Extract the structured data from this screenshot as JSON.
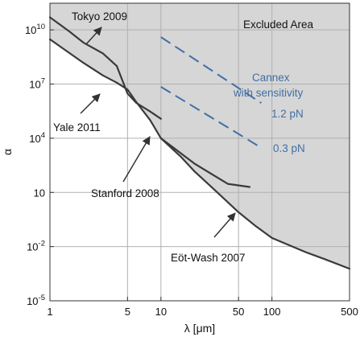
{
  "chart_data": {
    "type": "area",
    "xlabel": "λ [μm]",
    "ylabel": "α",
    "x_scale": "log",
    "y_scale": "log",
    "xlim": [
      1,
      500
    ],
    "ylim": [
      1e-05,
      300000000000
    ],
    "grid": true,
    "x_ticks": [
      1,
      5,
      10,
      50,
      100,
      500
    ],
    "x_tick_labels": [
      "1",
      "5",
      "10",
      "50",
      "100",
      "500"
    ],
    "y_ticks": [
      1e-05,
      0.01,
      10,
      10000,
      10000000,
      10000000000
    ],
    "y_tick_labels": [
      {
        "base": "10",
        "exp": "-5"
      },
      {
        "base": "10",
        "exp": "-2"
      },
      {
        "base": "10",
        "exp": ""
      },
      {
        "base": "10",
        "exp": "4"
      },
      {
        "base": "10",
        "exp": "7"
      },
      {
        "base": "10",
        "exp": "10"
      }
    ],
    "excluded_area_label": "Excluded Area",
    "excluded_color": "#d6d6d6",
    "curve_color": "#3a3a3a",
    "sensitivity_color": "#3f6fa6",
    "boundary": {
      "x": [
        1,
        2,
        3,
        4,
        5,
        6,
        8,
        10,
        15,
        20,
        30,
        50,
        70,
        100,
        200,
        300,
        500
      ],
      "y": [
        3000000000,
        150000000,
        30000000,
        12000000,
        5000000,
        1000000,
        100000,
        10000,
        1000,
        150,
        15,
        0.8,
        0.15,
        0.03,
        0.005,
        0.002,
        0.0006
      ]
    },
    "series": [
      {
        "name": "Tokyo 2009",
        "x": [
          1,
          1.5,
          2,
          3,
          4
        ],
        "y": [
          50000000000,
          8000000000,
          2000000000,
          500000000,
          100000000
        ]
      },
      {
        "name": "Yale 2011",
        "x": [
          1,
          2,
          3,
          4,
          5,
          6,
          8,
          10,
          20,
          40,
          63
        ],
        "y": [
          3000000000,
          150000000,
          30000000,
          12000000,
          5000000,
          1000000,
          100000,
          10000,
          400,
          30,
          20
        ]
      },
      {
        "name": "Stanford 2008",
        "x": [
          4,
          5,
          6,
          8,
          10
        ],
        "y": [
          100000000,
          3000000,
          900000,
          300000,
          120000
        ]
      },
      {
        "name": "Eöt-Wash 2007",
        "x": [
          10,
          15,
          20,
          30,
          50,
          70,
          100,
          200,
          300,
          500
        ],
        "y": [
          10000,
          1000,
          150,
          15,
          0.8,
          0.15,
          0.03,
          0.005,
          0.002,
          0.0006
        ]
      }
    ],
    "sensitivity": {
      "title": [
        "Cannex",
        "with sensitivity"
      ],
      "lines": [
        {
          "label": "1.2 pN",
          "x": [
            10,
            80
          ],
          "y": [
            4000000000,
            900000
          ]
        },
        {
          "label": "0.3 pN",
          "x": [
            10,
            80
          ],
          "y": [
            7000000,
            3000
          ]
        }
      ]
    }
  }
}
